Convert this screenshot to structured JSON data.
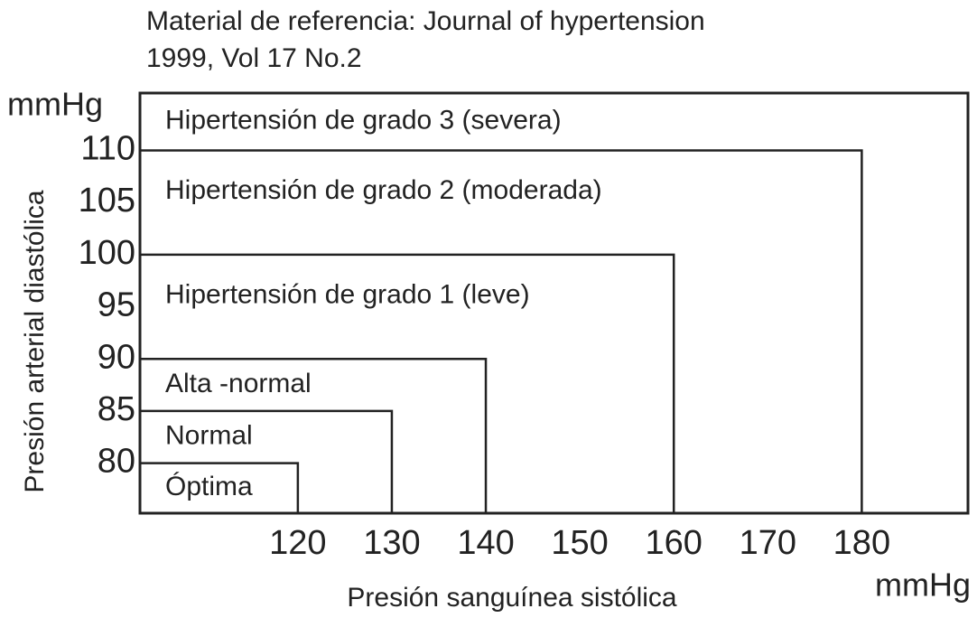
{
  "chart_data": {
    "type": "region",
    "title": "Material de referencia: Journal of hypertension",
    "subtitle": "1999, Vol 17 No.2",
    "x_label": "Presión sanguínea sistólica",
    "y_label": "Presión arterial diastólica",
    "x_unit": "mmHg",
    "y_unit": "mmHg",
    "categories": [
      "Óptima",
      "Normal",
      "Alta -normal",
      "Hipertensión de grado 1 (leve)",
      "Hipertensión de grado 2 (moderada)",
      "Hipertensión de grado 3 (severa)"
    ],
    "x": [
      120,
      130,
      140,
      160,
      180,
      null
    ],
    "values": [
      80,
      85,
      90,
      100,
      110,
      null
    ],
    "color": "#222222",
    "xlim": [
      103.2,
      191.3
    ],
    "ylim": [
      75.2,
      115.5
    ],
    "xticks": [
      120,
      130,
      140,
      150,
      160,
      170,
      180
    ],
    "yticks": [
      80,
      85,
      90,
      95,
      100,
      105,
      110
    ]
  }
}
